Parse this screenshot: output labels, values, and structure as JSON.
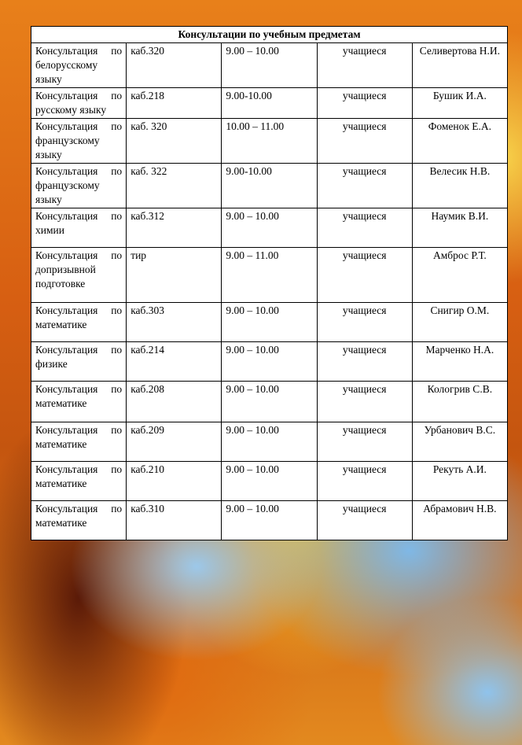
{
  "table": {
    "title": "Консультации по учебным предметам",
    "rows": [
      {
        "subject": "Консультация по белорусскому языку",
        "room": "каб.320",
        "time": "9.00 – 10.00",
        "who": "учащиеся",
        "teacher": "Селивертова Н.И."
      },
      {
        "subject": "Консультация по русскому языку",
        "room": "каб.218",
        "time": "9.00-10.00",
        "who": "учащиеся",
        "teacher": "Бушик И.А."
      },
      {
        "subject": "Консультация по французскому языку",
        "room": "каб. 320",
        "time": "10.00 – 11.00",
        "who": "учащиеся",
        "teacher": "Фоменок Е.А."
      },
      {
        "subject": "Консультация по французскому языку",
        "room": "каб. 322",
        "time": "9.00-10.00",
        "who": "учащиеся",
        "teacher": "Велесик Н.В."
      },
      {
        "subject": "Консультация по химии",
        "room": "каб.312",
        "time": "9.00 – 10.00",
        "who": "учащиеся",
        "teacher": "Наумик В.И."
      },
      {
        "subject": "Консультация по допризывной подготовке",
        "room": "тир",
        "time": "9.00 – 11.00",
        "who": "учащиеся",
        "teacher": "Амброс Р.Т."
      },
      {
        "subject": "Консультация по математике",
        "room": "каб.303",
        "time": "9.00 – 10.00",
        "who": "учащиеся",
        "teacher": "Снигир О.М."
      },
      {
        "subject": "Консультация по физике",
        "room": "каб.214",
        "time": "9.00 – 10.00",
        "who": "учащиеся",
        "teacher": "Марченко Н.А."
      },
      {
        "subject": "Консультация по математике",
        "room": "каб.208",
        "time": "9.00 – 10.00",
        "who": "учащиеся",
        "teacher": "Кологрив С.В."
      },
      {
        "subject": "Консультация по математике",
        "room": "каб.209",
        "time": "9.00 – 10.00",
        "who": "учащиеся",
        "teacher": "Урбанович В.С."
      },
      {
        "subject": "Консультация по математике",
        "room": "каб.210",
        "time": "9.00 – 10.00",
        "who": "учащиеся",
        "teacher": "Рекуть А.И."
      },
      {
        "subject": "Консультация по математике",
        "room": "каб.310",
        "time": "9.00 – 10.00",
        "who": "учащиеся",
        "teacher": "Абрамович Н.В."
      }
    ]
  }
}
